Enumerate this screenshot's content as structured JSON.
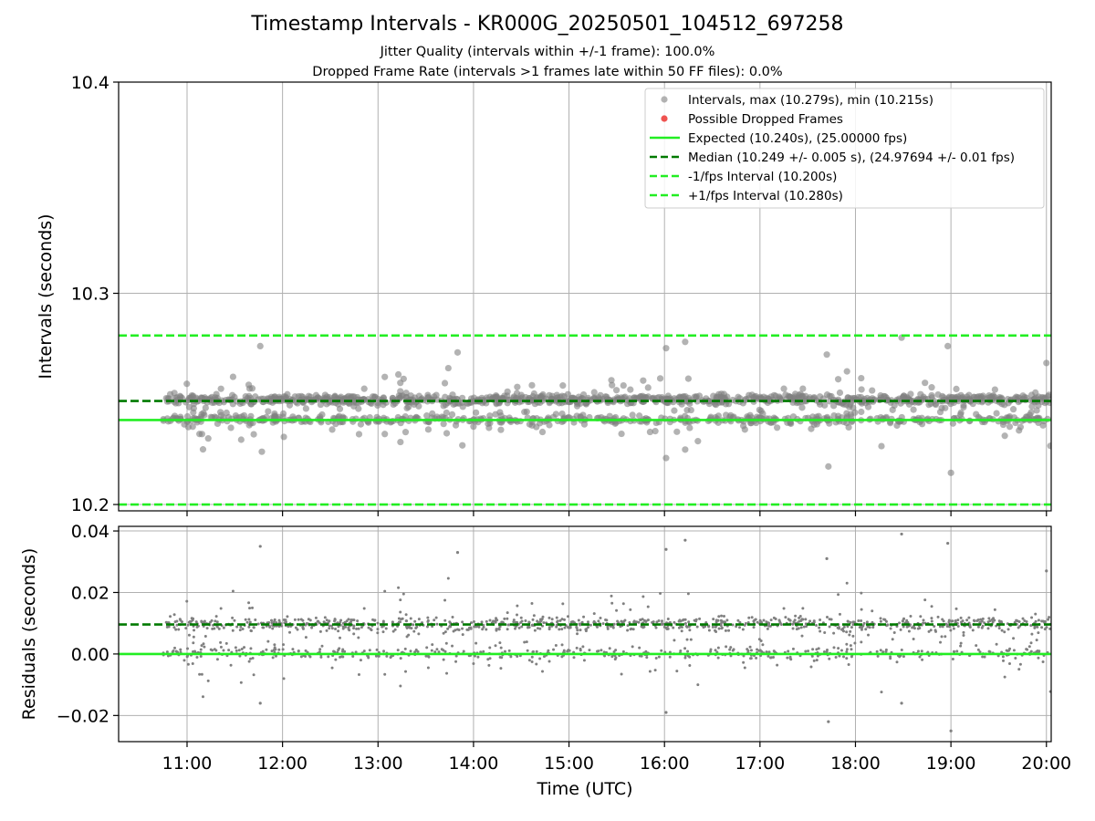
{
  "figure": {
    "title": "Timestamp Intervals - KR000G_20250501_104512_697258",
    "subtitle_1": "Jitter Quality (intervals within +/-1 frame): 100.0%",
    "subtitle_2": "Dropped Frame Rate (intervals >1 frames late within 50 FF files): 0.0%"
  },
  "colors": {
    "points": "#808080",
    "dropped": "#ef5350",
    "expected": "#22ee22",
    "median": "#007a00",
    "bounds": "#22ee22",
    "grid": "#b0b0b0"
  },
  "chart_data": [
    {
      "type": "scatter",
      "ylabel": "Intervals (seconds)",
      "xlabel": "",
      "ylim": [
        10.197,
        10.4
      ],
      "xlim": [
        "10:17",
        "20:03"
      ],
      "yticks": [
        "10.2",
        "10.3",
        "10.4"
      ],
      "ytick_values": [
        10.2,
        10.3,
        10.4
      ],
      "xticks": [
        "11:00",
        "12:00",
        "13:00",
        "14:00",
        "15:00",
        "16:00",
        "17:00",
        "18:00",
        "19:00",
        "20:00"
      ],
      "grid": true,
      "legend_position": "top-right",
      "legend": [
        "Intervals, max (10.279s), min (10.215s)",
        "Possible Dropped Frames",
        "Expected (10.240s), (25.00000 fps)",
        "Median (10.249 +/- 0.005 s), (24.97694 +/- 0.01 fps)",
        "-1/fps Interval (10.200s)",
        "+1/fps Interval (10.280s)"
      ],
      "lines": {
        "expected": 10.24,
        "median": 10.249,
        "minus_1fps": 10.2,
        "plus_1fps": 10.28
      },
      "series": [
        {
          "name": "Intervals, max (10.279s), min (10.215s)",
          "x_range": [
            "10:45",
            "20:03"
          ],
          "max": 10.279,
          "min": 10.215,
          "outliers": [
            {
              "x": "11:46",
              "y": 10.275
            },
            {
              "x": "11:47",
              "y": 10.225
            },
            {
              "x": "13:50",
              "y": 10.272
            },
            {
              "x": "13:53",
              "y": 10.228
            },
            {
              "x": "16:01",
              "y": 10.274
            },
            {
              "x": "16:01",
              "y": 10.222
            },
            {
              "x": "16:13",
              "y": 10.277
            },
            {
              "x": "16:13",
              "y": 10.226
            },
            {
              "x": "17:42",
              "y": 10.271
            },
            {
              "x": "17:43",
              "y": 10.218
            },
            {
              "x": "18:29",
              "y": 10.279
            },
            {
              "x": "18:58",
              "y": 10.275
            },
            {
              "x": "19:00",
              "y": 10.215
            },
            {
              "x": "20:00",
              "y": 10.267
            }
          ]
        }
      ]
    },
    {
      "type": "scatter",
      "ylabel": "Residuals (seconds)",
      "xlabel": "Time (UTC)",
      "ylim": [
        -0.0285,
        0.0415
      ],
      "yticks": [
        "−0.02",
        "0.00",
        "0.02",
        "0.04"
      ],
      "ytick_values": [
        -0.02,
        0.0,
        0.02,
        0.04
      ],
      "xticks": [
        "11:00",
        "12:00",
        "13:00",
        "14:00",
        "15:00",
        "16:00",
        "17:00",
        "18:00",
        "19:00",
        "20:00"
      ],
      "grid": true,
      "lines": {
        "expected": 0.0,
        "median": 0.0096
      },
      "series": [
        {
          "name": "Residuals",
          "x_range": [
            "10:45",
            "20:03"
          ],
          "outliers": [
            {
              "x": "11:46",
              "y": 0.035
            },
            {
              "x": "11:46",
              "y": -0.016
            },
            {
              "x": "13:50",
              "y": 0.033
            },
            {
              "x": "16:01",
              "y": 0.034
            },
            {
              "x": "16:01",
              "y": -0.019
            },
            {
              "x": "16:13",
              "y": 0.037
            },
            {
              "x": "17:42",
              "y": 0.031
            },
            {
              "x": "17:43",
              "y": -0.022
            },
            {
              "x": "18:29",
              "y": 0.039
            },
            {
              "x": "18:29",
              "y": -0.016
            },
            {
              "x": "18:58",
              "y": 0.036
            },
            {
              "x": "19:00",
              "y": -0.025
            },
            {
              "x": "20:00",
              "y": 0.027
            }
          ]
        }
      ]
    }
  ]
}
